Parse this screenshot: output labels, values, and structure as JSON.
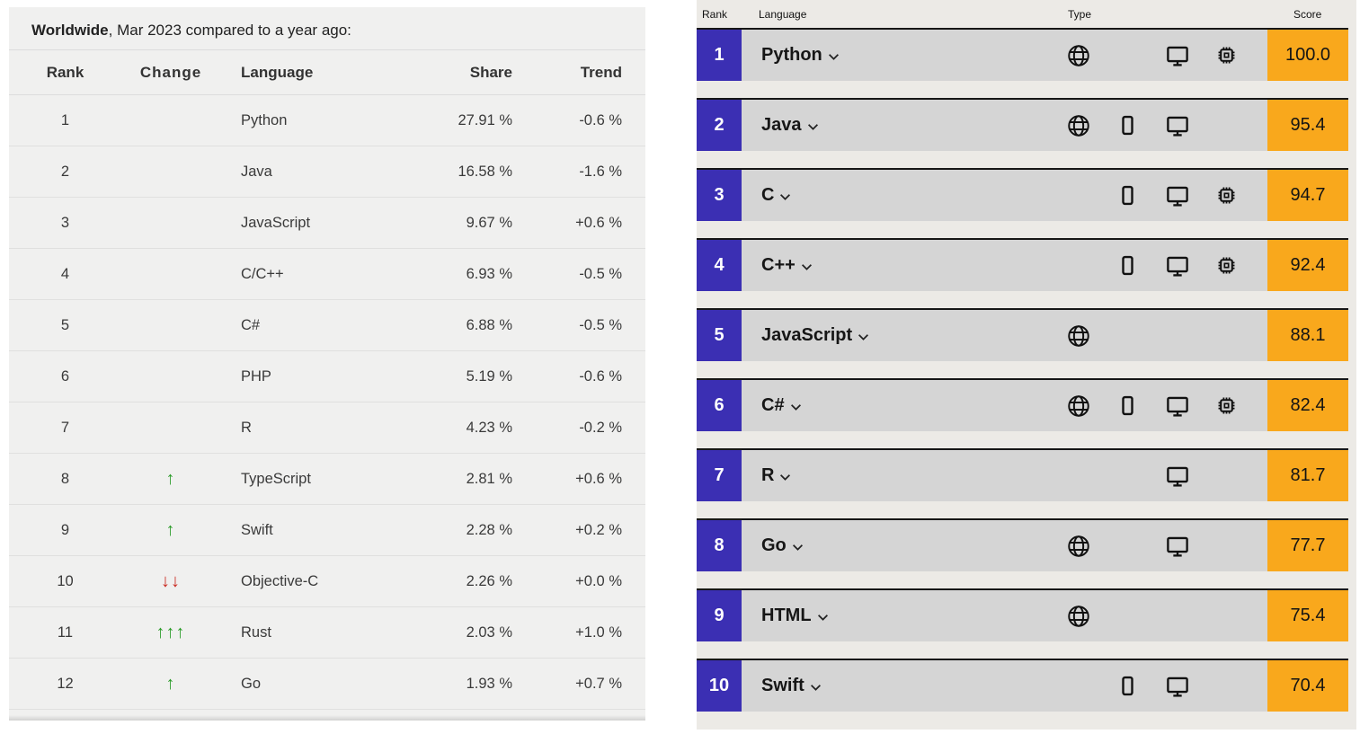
{
  "pypl": {
    "title_bold": "Worldwide",
    "title_rest": ", Mar 2023 compared to a year ago:",
    "columns": {
      "rank": "Rank",
      "change": "Change",
      "language": "Language",
      "share": "Share",
      "trend": "Trend"
    },
    "rows": [
      {
        "rank": "1",
        "change": {
          "dir": "",
          "count": 0
        },
        "language": "Python",
        "share": "27.91 %",
        "trend": "-0.6 %"
      },
      {
        "rank": "2",
        "change": {
          "dir": "",
          "count": 0
        },
        "language": "Java",
        "share": "16.58 %",
        "trend": "-1.6 %"
      },
      {
        "rank": "3",
        "change": {
          "dir": "",
          "count": 0
        },
        "language": "JavaScript",
        "share": "9.67 %",
        "trend": "+0.6 %"
      },
      {
        "rank": "4",
        "change": {
          "dir": "",
          "count": 0
        },
        "language": "C/C++",
        "share": "6.93 %",
        "trend": "-0.5 %"
      },
      {
        "rank": "5",
        "change": {
          "dir": "",
          "count": 0
        },
        "language": "C#",
        "share": "6.88 %",
        "trend": "-0.5 %"
      },
      {
        "rank": "6",
        "change": {
          "dir": "",
          "count": 0
        },
        "language": "PHP",
        "share": "5.19 %",
        "trend": "-0.6 %"
      },
      {
        "rank": "7",
        "change": {
          "dir": "",
          "count": 0
        },
        "language": "R",
        "share": "4.23 %",
        "trend": "-0.2 %"
      },
      {
        "rank": "8",
        "change": {
          "dir": "up",
          "count": 1
        },
        "language": "TypeScript",
        "share": "2.81 %",
        "trend": "+0.6 %"
      },
      {
        "rank": "9",
        "change": {
          "dir": "up",
          "count": 1
        },
        "language": "Swift",
        "share": "2.28 %",
        "trend": "+0.2 %"
      },
      {
        "rank": "10",
        "change": {
          "dir": "down",
          "count": 2
        },
        "language": "Objective-C",
        "share": "2.26 %",
        "trend": "+0.0 %"
      },
      {
        "rank": "11",
        "change": {
          "dir": "up",
          "count": 3
        },
        "language": "Rust",
        "share": "2.03 %",
        "trend": "+1.0 %"
      },
      {
        "rank": "12",
        "change": {
          "dir": "up",
          "count": 1
        },
        "language": "Go",
        "share": "1.93 %",
        "trend": "+0.7 %"
      }
    ]
  },
  "spectrum": {
    "columns": {
      "rank": "Rank",
      "language": "Language",
      "type": "Type",
      "score": "Score"
    },
    "type_icon_names": [
      "globe-icon",
      "mobile-icon",
      "desktop-icon",
      "chip-icon"
    ],
    "rows": [
      {
        "rank": "1",
        "language": "Python",
        "score": "100.0",
        "types": {
          "web": true,
          "mobile": false,
          "desktop": true,
          "embedded": true
        }
      },
      {
        "rank": "2",
        "language": "Java",
        "score": "95.4",
        "types": {
          "web": true,
          "mobile": true,
          "desktop": true,
          "embedded": false
        }
      },
      {
        "rank": "3",
        "language": "C",
        "score": "94.7",
        "types": {
          "web": false,
          "mobile": true,
          "desktop": true,
          "embedded": true
        }
      },
      {
        "rank": "4",
        "language": "C++",
        "score": "92.4",
        "types": {
          "web": false,
          "mobile": true,
          "desktop": true,
          "embedded": true
        }
      },
      {
        "rank": "5",
        "language": "JavaScript",
        "score": "88.1",
        "types": {
          "web": true,
          "mobile": false,
          "desktop": false,
          "embedded": false
        }
      },
      {
        "rank": "6",
        "language": "C#",
        "score": "82.4",
        "types": {
          "web": true,
          "mobile": true,
          "desktop": true,
          "embedded": true
        }
      },
      {
        "rank": "7",
        "language": "R",
        "score": "81.7",
        "types": {
          "web": false,
          "mobile": false,
          "desktop": true,
          "embedded": false
        }
      },
      {
        "rank": "8",
        "language": "Go",
        "score": "77.7",
        "types": {
          "web": true,
          "mobile": false,
          "desktop": true,
          "embedded": false
        }
      },
      {
        "rank": "9",
        "language": "HTML",
        "score": "75.4",
        "types": {
          "web": true,
          "mobile": false,
          "desktop": false,
          "embedded": false
        }
      },
      {
        "rank": "10",
        "language": "Swift",
        "score": "70.4",
        "types": {
          "web": false,
          "mobile": true,
          "desktop": true,
          "embedded": false
        }
      }
    ]
  },
  "colors": {
    "rank_badge": "#3b2fb3",
    "score_badge": "#f9a81c",
    "row_gray": "#d5d5d5",
    "up_arrow": "#2a9b28",
    "down_arrow": "#c92a21"
  }
}
